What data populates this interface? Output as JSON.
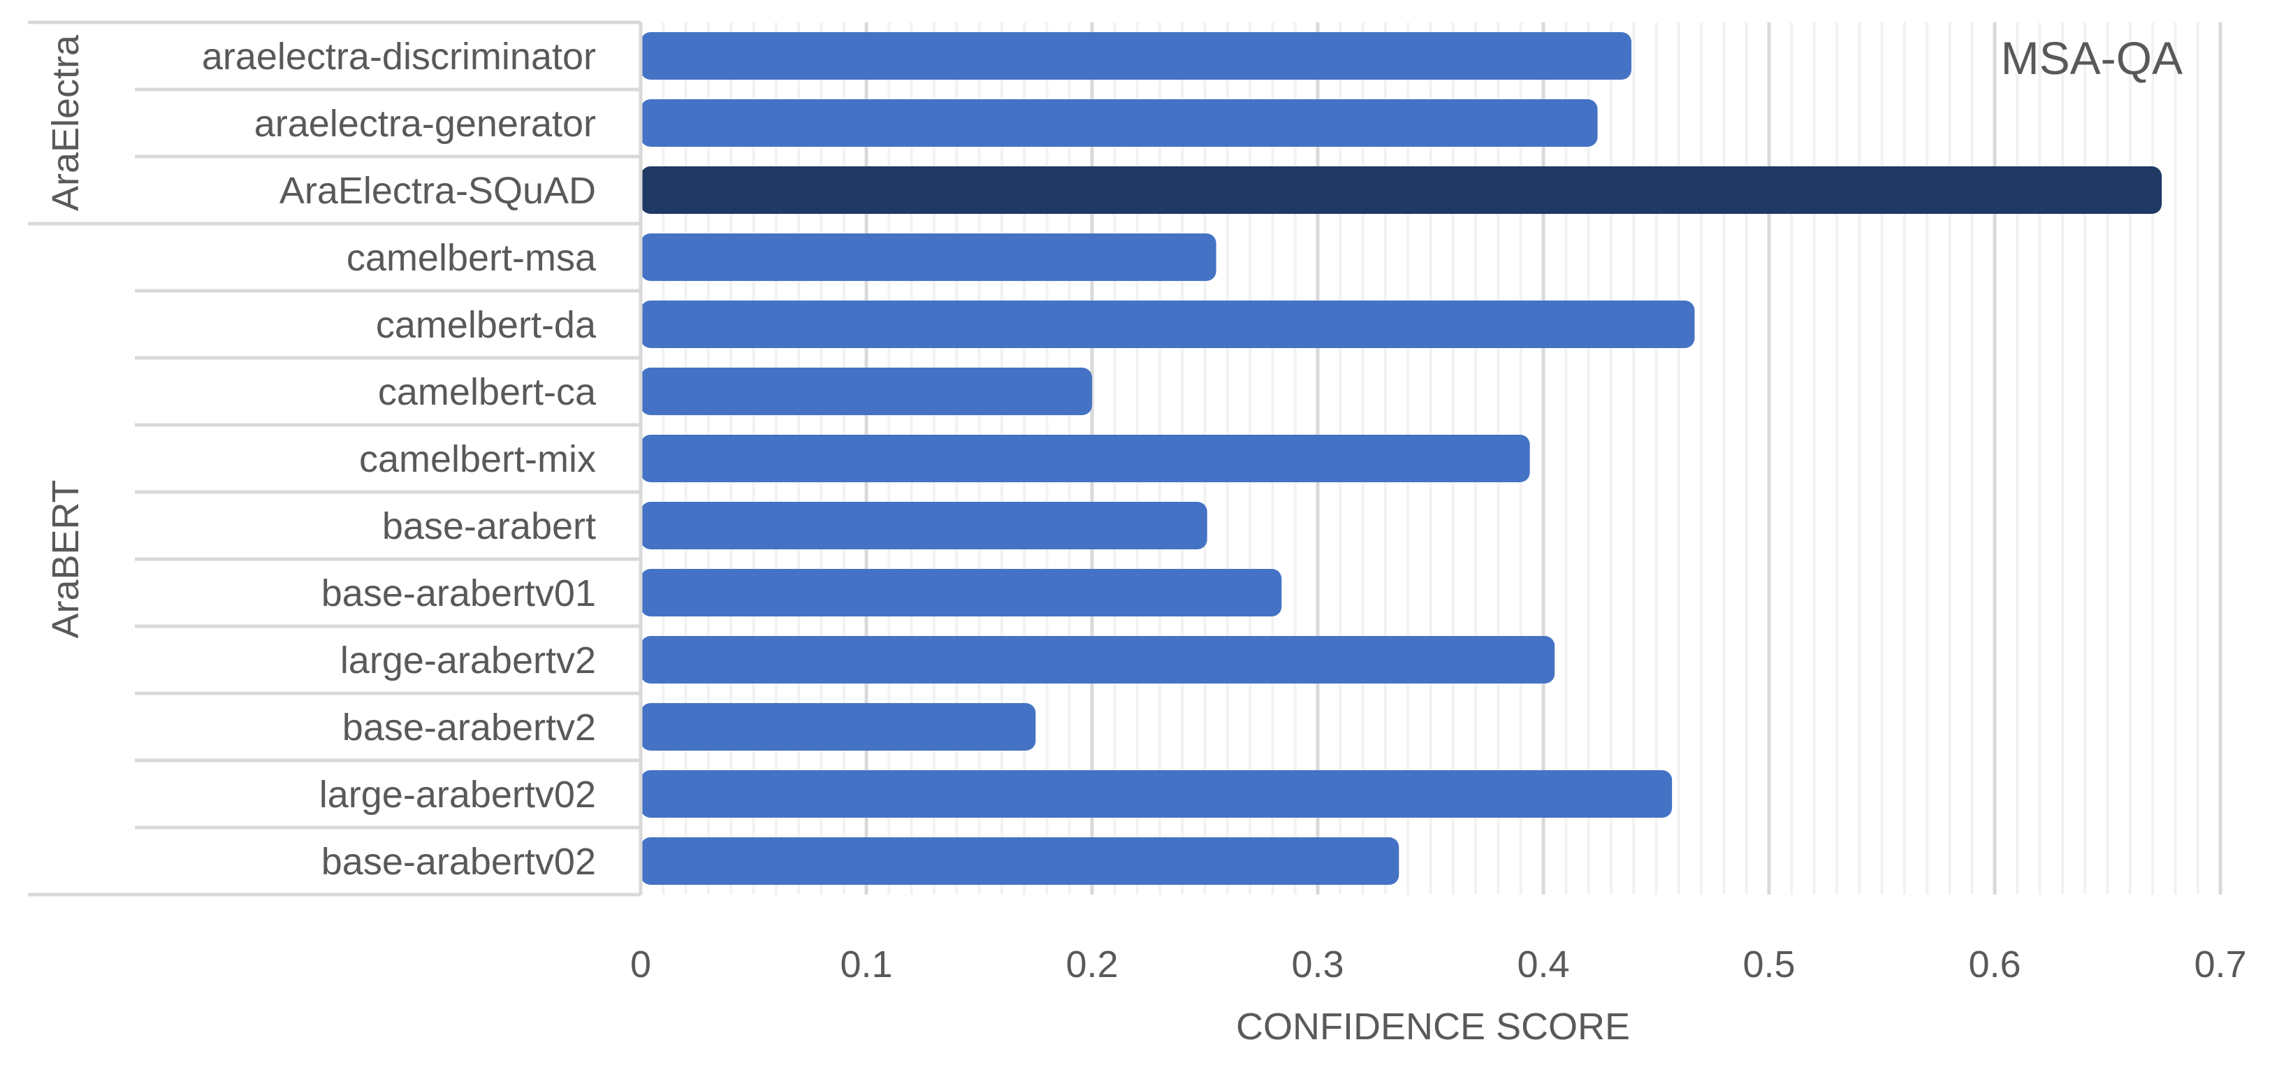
{
  "chart_data": {
    "type": "bar",
    "orientation": "horizontal",
    "title": "MSA-QA",
    "xlabel": "CONFIDENCE SCORE",
    "ylabel": "",
    "xlim": [
      0,
      0.7
    ],
    "x_ticks": [
      "0",
      "0.1",
      "0.2",
      "0.3",
      "0.4",
      "0.5",
      "0.6",
      "0.7"
    ],
    "grid": "vertical major and minor",
    "groups": [
      {
        "name": "AraElectra",
        "categories": [
          "araelectra-discriminator",
          "araelectra-generator",
          "AraElectra-SQuAD"
        ]
      },
      {
        "name": "AraBERT",
        "categories": [
          "camelbert-msa",
          "camelbert-da",
          "camelbert-ca",
          "camelbert-mix",
          "base-arabert",
          "base-arabertv01",
          "large-arabertv2",
          "base-arabertv2",
          "large-arabertv02",
          "base-arabertv02"
        ]
      }
    ],
    "categories": [
      "araelectra-discriminator",
      "araelectra-generator",
      "AraElectra-SQuAD",
      "camelbert-msa",
      "camelbert-da",
      "camelbert-ca",
      "camelbert-mix",
      "base-arabert",
      "base-arabertv01",
      "large-arabertv2",
      "base-arabertv2",
      "large-arabertv02",
      "base-arabertv02"
    ],
    "values": [
      0.439,
      0.424,
      0.674,
      0.255,
      0.467,
      0.2,
      0.394,
      0.251,
      0.284,
      0.405,
      0.175,
      0.457,
      0.336
    ],
    "highlight": "AraElectra-SQuAD",
    "colors": {
      "bar": "#4472C4",
      "highlight": "#203864",
      "text": "#595959",
      "grid_major": "#D9D9D9",
      "grid_minor": "#F2F2F2",
      "axis": "#D9D9D9"
    }
  }
}
